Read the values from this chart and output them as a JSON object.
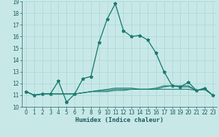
{
  "xlabel": "Humidex (Indice chaleur)",
  "x": [
    0,
    1,
    2,
    3,
    4,
    5,
    6,
    7,
    8,
    9,
    10,
    11,
    12,
    13,
    14,
    15,
    16,
    17,
    18,
    19,
    20,
    21,
    22,
    23
  ],
  "curves": [
    {
      "y": [
        11.3,
        11.0,
        11.1,
        11.1,
        12.2,
        10.4,
        11.1,
        12.4,
        12.6,
        15.5,
        17.5,
        18.8,
        16.5,
        16.0,
        16.1,
        15.7,
        14.6,
        13.0,
        11.8,
        11.7,
        12.1,
        11.4,
        11.6,
        11.0
      ],
      "color": "#1a7a6e",
      "marker": "*",
      "markersize": 3.5,
      "lw": 1.0
    },
    {
      "y": [
        11.3,
        11.0,
        11.1,
        11.1,
        11.1,
        11.1,
        11.1,
        11.2,
        11.3,
        11.3,
        11.3,
        11.4,
        11.4,
        11.5,
        11.5,
        11.5,
        11.5,
        11.7,
        11.8,
        11.7,
        11.7,
        11.4,
        11.5,
        11.0
      ],
      "color": "#1a7a6e",
      "marker": null,
      "markersize": 0,
      "lw": 0.8
    },
    {
      "y": [
        11.3,
        11.0,
        11.1,
        11.1,
        11.1,
        11.1,
        11.1,
        11.2,
        11.3,
        11.4,
        11.4,
        11.5,
        11.5,
        11.5,
        11.5,
        11.5,
        11.6,
        11.8,
        11.8,
        11.8,
        11.8,
        11.4,
        11.5,
        11.0
      ],
      "color": "#1a7a6e",
      "marker": null,
      "markersize": 0,
      "lw": 0.8
    },
    {
      "y": [
        11.3,
        11.0,
        11.1,
        11.1,
        11.1,
        11.1,
        11.1,
        11.2,
        11.3,
        11.4,
        11.5,
        11.6,
        11.6,
        11.6,
        11.5,
        11.5,
        11.5,
        11.5,
        11.5,
        11.5,
        11.5,
        11.4,
        11.5,
        11.0
      ],
      "color": "#1a7a6e",
      "marker": null,
      "markersize": 0,
      "lw": 0.8
    }
  ],
  "ylim": [
    10,
    19
  ],
  "yticks": [
    10,
    11,
    12,
    13,
    14,
    15,
    16,
    17,
    18,
    19
  ],
  "xlim": [
    -0.5,
    23.5
  ],
  "xticks": [
    0,
    1,
    2,
    3,
    4,
    5,
    6,
    7,
    8,
    9,
    10,
    11,
    12,
    13,
    14,
    15,
    16,
    17,
    18,
    19,
    20,
    21,
    22,
    23
  ],
  "bg_color": "#c8e8e8",
  "grid_color": "#a8d4d4",
  "tick_color": "#1a5a5a",
  "label_color": "#1a5a5a"
}
